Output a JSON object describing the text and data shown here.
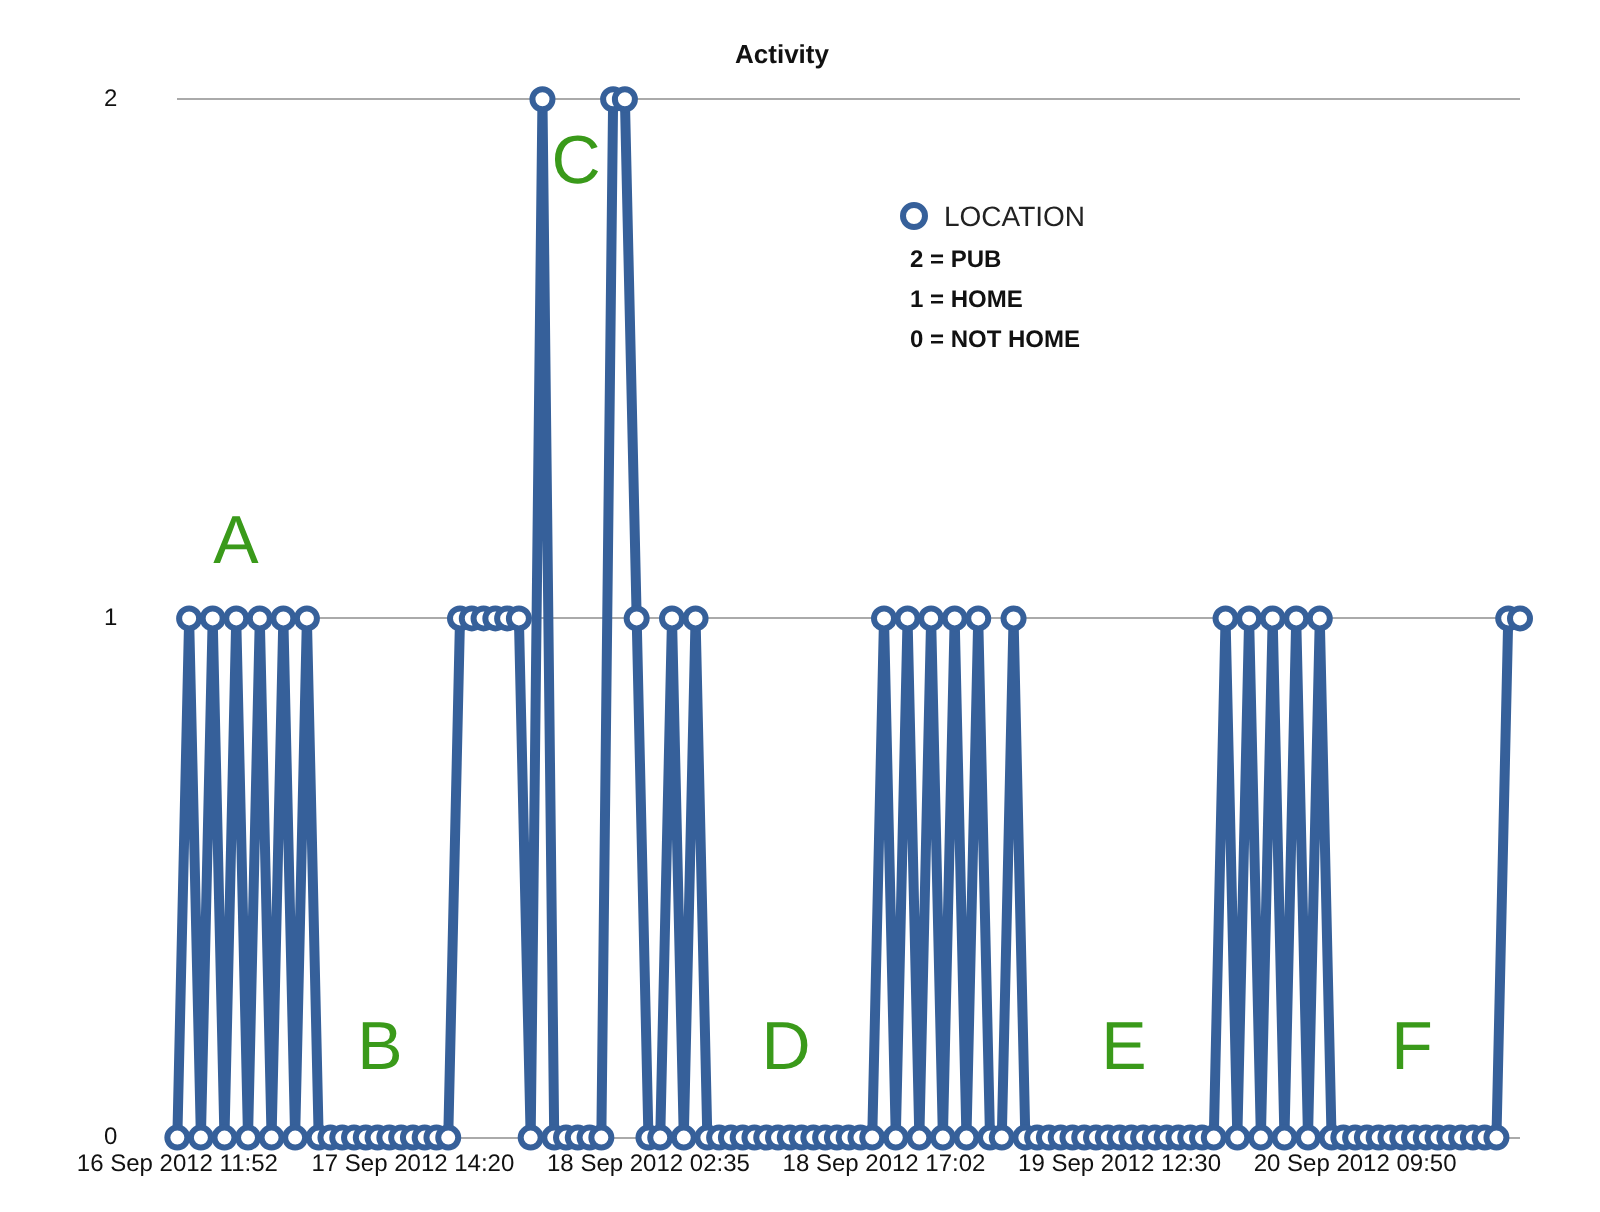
{
  "chart_data": {
    "type": "line",
    "title": "Activity",
    "categories": [
      "16 Sep 2012 11:52",
      null,
      null,
      null,
      null,
      null,
      null,
      null,
      null,
      null,
      null,
      null,
      null,
      null,
      null,
      null,
      null,
      null,
      null,
      null,
      "17 Sep 2012 14:20",
      null,
      null,
      null,
      null,
      null,
      null,
      null,
      null,
      null,
      null,
      null,
      null,
      null,
      null,
      null,
      null,
      null,
      null,
      null,
      "18 Sep 2012 02:35",
      null,
      null,
      null,
      null,
      null,
      null,
      null,
      null,
      null,
      null,
      null,
      null,
      null,
      null,
      null,
      null,
      null,
      null,
      null,
      "18 Sep 2012 17:02",
      null,
      null,
      null,
      null,
      null,
      null,
      null,
      null,
      null,
      null,
      null,
      null,
      null,
      null,
      null,
      null,
      null,
      null,
      null,
      "19 Sep 2012 12:30",
      null,
      null,
      null,
      null,
      null,
      null,
      null,
      null,
      null,
      null,
      null,
      null,
      null,
      null,
      null,
      null,
      null,
      null,
      null,
      "20 Sep 2012 09:50",
      null,
      null,
      null,
      null,
      null,
      null,
      null,
      null,
      null,
      null,
      null,
      null,
      null,
      null
    ],
    "series": [
      {
        "name": "LOCATION",
        "color": "#36609a",
        "values": [
          0,
          1,
          0,
          1,
          0,
          1,
          0,
          1,
          0,
          1,
          0,
          1,
          0,
          0,
          0,
          0,
          0,
          0,
          0,
          0,
          0,
          0,
          0,
          0,
          1,
          1,
          1,
          1,
          1,
          1,
          0,
          2,
          0,
          0,
          0,
          0,
          0,
          2,
          2,
          1,
          0,
          0,
          1,
          0,
          1,
          0,
          0,
          0,
          0,
          0,
          0,
          0,
          0,
          0,
          0,
          0,
          0,
          0,
          0,
          0,
          1,
          0,
          1,
          0,
          1,
          0,
          1,
          0,
          1,
          0,
          0,
          1,
          0,
          0,
          0,
          0,
          0,
          0,
          0,
          0,
          0,
          0,
          0,
          0,
          0,
          0,
          0,
          0,
          0,
          1,
          0,
          1,
          0,
          1,
          0,
          1,
          0,
          1,
          0,
          0,
          0,
          0,
          0,
          0,
          0,
          0,
          0,
          0,
          0,
          0,
          0,
          0,
          0,
          1,
          1
        ]
      }
    ],
    "ylim": [
      0,
      2
    ],
    "yticks": [
      0,
      1,
      2
    ],
    "grid": "y",
    "legend": "top right",
    "marker": "circle",
    "line_style": "solid",
    "annotations": [
      "A",
      "B",
      "C",
      "D",
      "E",
      "F",
      "2 = PUB",
      "1 = HOME",
      "0 = NOT HOME"
    ]
  }
}
